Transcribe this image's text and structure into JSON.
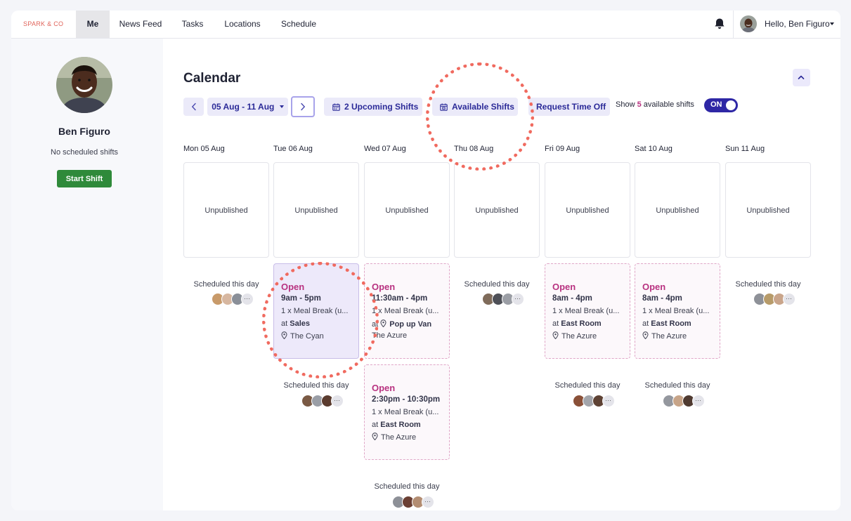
{
  "nav": {
    "brand": "SPARK & CO",
    "items": [
      {
        "label": "Me"
      },
      {
        "label": "News Feed"
      },
      {
        "label": "Tasks"
      },
      {
        "label": "Locations"
      },
      {
        "label": "Schedule"
      }
    ],
    "greeting": "Hello, Ben Figuro",
    "icons": {
      "notifications": "bell-icon",
      "menu": "chevron-down-icon"
    }
  },
  "sidebar": {
    "name": "Ben Figuro",
    "status": "No scheduled shifts",
    "start_label": "Start Shift"
  },
  "calendar": {
    "title": "Calendar",
    "range": "05 Aug - 11 Aug",
    "upcoming_label": "2 Upcoming Shifts",
    "available_label": "Available Shifts",
    "timeoff_label": "Request Time Off",
    "show_prefix": "Show",
    "show_count": "5",
    "show_suffix": "available shifts",
    "toggle_label": "ON",
    "toggle_on": true,
    "unpublished_label": "Unpublished",
    "scheduled_label": "Scheduled this day",
    "more_label": "···",
    "accent_color": "#2e27a5",
    "open_color": "#b83280",
    "days": [
      {
        "label": "Mon 05 Aug"
      },
      {
        "label": "Tue 06 Aug"
      },
      {
        "label": "Wed 07 Aug"
      },
      {
        "label": "Thu 08 Aug"
      },
      {
        "label": "Fri 09 Aug"
      },
      {
        "label": "Sat 10 Aug"
      },
      {
        "label": "Sun 11 Aug"
      }
    ],
    "shifts": [
      {
        "status": "Open",
        "time": "9am - 5pm",
        "meal": "1 x Meal Break (u...",
        "at": "at",
        "area": "Sales",
        "location": "The Cyan"
      },
      {
        "status": "Open",
        "time": "11:30am - 4pm",
        "meal": "1 x Meal Break (u...",
        "at": "at",
        "area": "Pop up Van",
        "location": "The Azure"
      },
      {
        "status": "Open",
        "time": "2:30pm - 10:30pm",
        "meal": "1 x Meal Break (u...",
        "at": "at",
        "area": "East Room",
        "location": "The Azure"
      },
      {
        "status": "Open",
        "time": "8am - 4pm",
        "meal": "1 x Meal Break (u...",
        "at": "at",
        "area": "East Room",
        "location": "The Azure"
      },
      {
        "status": "Open",
        "time": "8am - 4pm",
        "meal": "1 x Meal Break (u...",
        "at": "at",
        "area": "East Room",
        "location": "The Azure"
      }
    ]
  }
}
